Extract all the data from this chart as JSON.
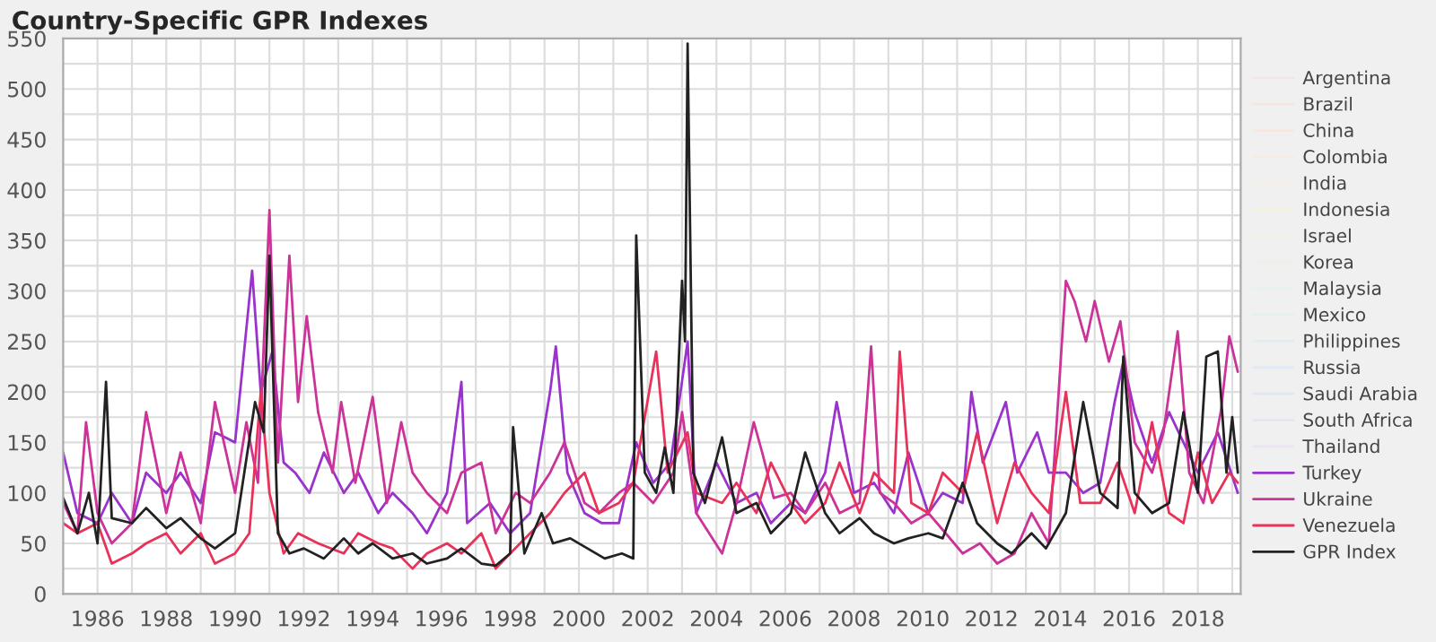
{
  "chart_data": {
    "type": "line",
    "title": "Country-Specific GPR Indexes",
    "xlim": [
      "1985-01",
      "2019-04"
    ],
    "ylim": [
      0,
      550
    ],
    "yticks": [
      0,
      {
        "value": 25,
        "label": null
      },
      50,
      {
        "value": 75,
        "label": null
      },
      100,
      {
        "value": 125,
        "label": null
      },
      150,
      {
        "value": 175,
        "label": null
      },
      200,
      {
        "value": 225,
        "label": null
      },
      250,
      {
        "value": 275,
        "label": null
      },
      300,
      {
        "value": 325,
        "label": null
      },
      350,
      {
        "value": 375,
        "label": null
      },
      400,
      {
        "value": 425,
        "label": null
      },
      450,
      {
        "value": 475,
        "label": null
      },
      500,
      {
        "value": 525,
        "label": null
      },
      550
    ],
    "xticks": [
      {
        "value": "1986",
        "label": "1986"
      },
      {
        "value": "1987",
        "label": null
      },
      {
        "value": "1988",
        "label": "1988"
      },
      {
        "value": "1989",
        "label": null
      },
      {
        "value": "1990",
        "label": "1990"
      },
      {
        "value": "1991",
        "label": null
      },
      {
        "value": "1992",
        "label": "1992"
      },
      {
        "value": "1993",
        "label": null
      },
      {
        "value": "1994",
        "label": "1994"
      },
      {
        "value": "1995",
        "label": null
      },
      {
        "value": "1996",
        "label": "1996"
      },
      {
        "value": "1997",
        "label": null
      },
      {
        "value": "1998",
        "label": "1998"
      },
      {
        "value": "1999",
        "label": null
      },
      {
        "value": "2000",
        "label": "2000"
      },
      {
        "value": "2001",
        "label": null
      },
      {
        "value": "2002",
        "label": "2002"
      },
      {
        "value": "2003",
        "label": null
      },
      {
        "value": "2004",
        "label": "2004"
      },
      {
        "value": "2005",
        "label": null
      },
      {
        "value": "2006",
        "label": "2006"
      },
      {
        "value": "2007",
        "label": null
      },
      {
        "value": "2008",
        "label": "2008"
      },
      {
        "value": "2009",
        "label": null
      },
      {
        "value": "2010",
        "label": "2010"
      },
      {
        "value": "2011",
        "label": null
      },
      {
        "value": "2012",
        "label": "2012"
      },
      {
        "value": "2013",
        "label": null
      },
      {
        "value": "2014",
        "label": "2014"
      },
      {
        "value": "2015",
        "label": null
      },
      {
        "value": "2016",
        "label": "2016"
      },
      {
        "value": "2017",
        "label": null
      },
      {
        "value": "2018",
        "label": "2018"
      },
      {
        "value": "2019",
        "label": null
      }
    ],
    "grid": true,
    "legend": "right",
    "line_style": "solid",
    "marker": "none",
    "series": [
      {
        "name": "Argentina",
        "color": "#f6e4e4"
      },
      {
        "name": "Brazil",
        "color": "#f6e6dc"
      },
      {
        "name": "China",
        "color": "#f6e8e0"
      },
      {
        "name": "Colombia",
        "color": "#f6ecde"
      },
      {
        "name": "India",
        "color": "#f6eede"
      },
      {
        "name": "Indonesia",
        "color": "#f4f0e0"
      },
      {
        "name": "Israel",
        "color": "#f0f2e2"
      },
      {
        "name": "Korea",
        "color": "#eaf2e6"
      },
      {
        "name": "Malaysia",
        "color": "#e6f2ea"
      },
      {
        "name": "Mexico",
        "color": "#e2f0ee"
      },
      {
        "name": "Philippines",
        "color": "#e0eef2"
      },
      {
        "name": "Russia",
        "color": "#e0eaf4"
      },
      {
        "name": "Saudi Arabia",
        "color": "#e2e6f4"
      },
      {
        "name": "South Africa",
        "color": "#e6e4f4"
      },
      {
        "name": "Thailand",
        "color": "#ece4f4"
      },
      {
        "name": "Turkey",
        "color": "#9933cc",
        "x": [
          "1985-01",
          "1985-06",
          "1986-01",
          "1986-06",
          "1987-01",
          "1987-06",
          "1988-01",
          "1988-06",
          "1989-01",
          "1989-06",
          "1990-01",
          "1990-07",
          "1990-10",
          "1991-02",
          "1991-06",
          "1991-10",
          "1992-03",
          "1992-08",
          "1993-03",
          "1993-08",
          "1994-03",
          "1994-08",
          "1995-03",
          "1995-08",
          "1996-03",
          "1996-08",
          "1996-10",
          "1997-06",
          "1998-01",
          "1998-08",
          "1999-03",
          "1999-05",
          "1999-09",
          "2000-03",
          "2000-09",
          "2001-03",
          "2001-09",
          "2002-03",
          "2002-09",
          "2003-03",
          "2003-06",
          "2004-01",
          "2004-08",
          "2005-03",
          "2005-08",
          "2006-03",
          "2006-08",
          "2007-03",
          "2007-07",
          "2008-01",
          "2008-08",
          "2009-03",
          "2009-08",
          "2010-03",
          "2010-08",
          "2011-03",
          "2011-06",
          "2011-10",
          "2012-06",
          "2012-10",
          "2013-05",
          "2013-09",
          "2014-03",
          "2014-09",
          "2015-03",
          "2015-08",
          "2015-11",
          "2016-03",
          "2016-09",
          "2017-03",
          "2017-08",
          "2018-01",
          "2018-08",
          "2019-03"
        ],
        "values": [
          140,
          80,
          70,
          100,
          70,
          120,
          100,
          120,
          90,
          160,
          150,
          320,
          200,
          240,
          130,
          120,
          100,
          140,
          100,
          120,
          80,
          100,
          80,
          60,
          100,
          210,
          70,
          90,
          60,
          80,
          200,
          245,
          120,
          80,
          70,
          70,
          150,
          110,
          130,
          250,
          80,
          130,
          90,
          100,
          70,
          90,
          80,
          120,
          190,
          100,
          110,
          80,
          140,
          80,
          100,
          90,
          200,
          130,
          190,
          120,
          160,
          120,
          120,
          100,
          110,
          190,
          230,
          180,
          130,
          180,
          150,
          120,
          160,
          100
        ]
      },
      {
        "name": "Ukraine",
        "color": "#cc3399",
        "x": [
          "1985-01",
          "1985-06",
          "1985-09",
          "1986-01",
          "1986-06",
          "1987-01",
          "1987-06",
          "1988-01",
          "1988-06",
          "1989-01",
          "1989-06",
          "1990-01",
          "1990-05",
          "1990-09",
          "1991-01",
          "1991-04",
          "1991-08",
          "1991-11",
          "1992-02",
          "1992-06",
          "1992-11",
          "1993-02",
          "1993-07",
          "1994-01",
          "1994-06",
          "1994-11",
          "1995-03",
          "1995-08",
          "1996-03",
          "1996-08",
          "1997-03",
          "1997-08",
          "1998-03",
          "1998-08",
          "1999-03",
          "1999-08",
          "2000-03",
          "2000-08",
          "2001-03",
          "2001-08",
          "2002-03",
          "2002-10",
          "2003-01",
          "2003-06",
          "2004-03",
          "2004-08",
          "2005-02",
          "2005-05",
          "2005-09",
          "2006-03",
          "2006-08",
          "2007-03",
          "2007-08",
          "2008-03",
          "2008-07",
          "2008-10",
          "2009-03",
          "2009-09",
          "2010-03",
          "2010-09",
          "2011-03",
          "2011-09",
          "2012-03",
          "2012-09",
          "2013-03",
          "2013-09",
          "2014-03",
          "2014-06",
          "2014-10",
          "2015-01",
          "2015-06",
          "2015-10",
          "2016-03",
          "2016-09",
          "2017-01",
          "2017-06",
          "2017-10",
          "2018-03",
          "2018-09",
          "2018-12",
          "2019-03"
        ],
        "values": [
          90,
          60,
          170,
          80,
          50,
          70,
          180,
          80,
          140,
          70,
          190,
          100,
          170,
          110,
          380,
          130,
          335,
          190,
          275,
          180,
          120,
          190,
          110,
          195,
          90,
          170,
          120,
          100,
          80,
          120,
          130,
          60,
          100,
          90,
          120,
          150,
          90,
          80,
          100,
          110,
          90,
          120,
          180,
          80,
          40,
          90,
          170,
          140,
          95,
          100,
          80,
          110,
          80,
          90,
          245,
          100,
          90,
          70,
          80,
          60,
          40,
          50,
          30,
          40,
          80,
          50,
          310,
          290,
          250,
          290,
          230,
          270,
          150,
          120,
          160,
          260,
          120,
          90,
          180,
          255,
          220
        ]
      },
      {
        "name": "Venezuela",
        "color": "#e8325a",
        "x": [
          "1985-01",
          "1985-06",
          "1986-01",
          "1986-06",
          "1987-01",
          "1987-06",
          "1988-01",
          "1988-06",
          "1989-01",
          "1989-06",
          "1990-01",
          "1990-06",
          "1990-10",
          "1991-01",
          "1991-06",
          "1991-11",
          "1992-06",
          "1993-03",
          "1993-08",
          "1994-03",
          "1994-08",
          "1995-03",
          "1995-08",
          "1996-03",
          "1996-08",
          "1997-03",
          "1997-08",
          "1998-01",
          "1998-08",
          "1999-03",
          "1999-08",
          "2000-03",
          "2000-08",
          "2001-03",
          "2001-08",
          "2002-04",
          "2002-08",
          "2003-03",
          "2003-06",
          "2004-03",
          "2004-08",
          "2005-03",
          "2005-08",
          "2006-03",
          "2006-08",
          "2007-03",
          "2007-08",
          "2008-03",
          "2008-08",
          "2009-03",
          "2009-05",
          "2009-09",
          "2010-03",
          "2010-08",
          "2011-03",
          "2011-08",
          "2012-03",
          "2012-09",
          "2013-03",
          "2013-09",
          "2014-03",
          "2014-08",
          "2015-03",
          "2015-09",
          "2016-03",
          "2016-09",
          "2017-03",
          "2017-08",
          "2018-01",
          "2018-06",
          "2018-12",
          "2019-03"
        ],
        "values": [
          70,
          60,
          70,
          30,
          40,
          50,
          60,
          40,
          60,
          30,
          40,
          60,
          200,
          100,
          40,
          60,
          50,
          40,
          60,
          50,
          45,
          25,
          40,
          50,
          40,
          60,
          25,
          40,
          60,
          80,
          100,
          120,
          80,
          90,
          110,
          240,
          120,
          160,
          100,
          90,
          110,
          80,
          130,
          90,
          70,
          90,
          130,
          80,
          120,
          100,
          240,
          90,
          80,
          120,
          100,
          160,
          70,
          130,
          100,
          80,
          200,
          90,
          90,
          130,
          80,
          170,
          80,
          70,
          140,
          90,
          120,
          110
        ]
      },
      {
        "name": "GPR Index",
        "color": "#222222",
        "x": [
          "1985-01",
          "1985-06",
          "1985-10",
          "1986-01",
          "1986-04",
          "1986-06",
          "1987-01",
          "1987-06",
          "1988-01",
          "1988-06",
          "1989-01",
          "1989-06",
          "1990-01",
          "1990-08",
          "1990-11",
          "1991-01",
          "1991-04",
          "1991-08",
          "1992-01",
          "1992-08",
          "1993-03",
          "1993-08",
          "1994-01",
          "1994-08",
          "1995-03",
          "1995-08",
          "1996-03",
          "1996-08",
          "1997-03",
          "1997-08",
          "1998-01",
          "1998-02",
          "1998-06",
          "1998-12",
          "1999-04",
          "1999-10",
          "2000-04",
          "2000-10",
          "2001-04",
          "2001-08",
          "2001-09",
          "2001-12",
          "2002-04",
          "2002-07",
          "2002-10",
          "2003-01",
          "2003-02",
          "2003-03",
          "2003-05",
          "2003-09",
          "2004-03",
          "2004-08",
          "2005-03",
          "2005-08",
          "2006-03",
          "2006-08",
          "2007-03",
          "2007-08",
          "2008-03",
          "2008-08",
          "2009-03",
          "2009-08",
          "2010-03",
          "2010-08",
          "2011-03",
          "2011-08",
          "2012-03",
          "2012-08",
          "2013-03",
          "2013-08",
          "2014-03",
          "2014-09",
          "2015-03",
          "2015-09",
          "2015-11",
          "2016-03",
          "2016-09",
          "2017-03",
          "2017-08",
          "2018-01",
          "2018-04",
          "2018-08",
          "2018-11",
          "2019-01",
          "2019-03"
        ],
        "values": [
          95,
          60,
          100,
          50,
          210,
          75,
          70,
          85,
          65,
          75,
          55,
          45,
          60,
          190,
          160,
          335,
          60,
          40,
          45,
          35,
          55,
          40,
          50,
          35,
          40,
          30,
          35,
          45,
          30,
          28,
          40,
          165,
          40,
          80,
          50,
          55,
          45,
          35,
          40,
          35,
          355,
          120,
          100,
          145,
          100,
          310,
          250,
          545,
          120,
          90,
          155,
          80,
          90,
          60,
          80,
          140,
          80,
          60,
          75,
          60,
          50,
          55,
          60,
          55,
          110,
          70,
          50,
          40,
          60,
          45,
          80,
          190,
          100,
          85,
          235,
          100,
          80,
          90,
          180,
          100,
          235,
          240,
          120,
          175,
          120
        ]
      }
    ]
  }
}
